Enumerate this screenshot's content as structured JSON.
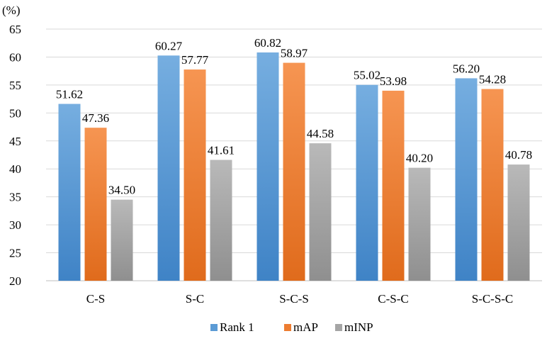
{
  "chart_data": {
    "type": "bar",
    "y_unit": "(%)",
    "categories": [
      "C-S",
      "S-C",
      "S-C-S",
      "C-S-C",
      "S-C-S-C"
    ],
    "series": [
      {
        "name": "Rank 1",
        "color": "#5b9bd5",
        "values": [
          51.62,
          60.27,
          60.82,
          55.02,
          56.2
        ],
        "labels": [
          "51.62",
          "60.27",
          "60.82",
          "55.02",
          "56.20"
        ]
      },
      {
        "name": "mAP",
        "color": "#ed7d31",
        "values": [
          47.36,
          57.77,
          58.97,
          53.98,
          54.28
        ],
        "labels": [
          "47.36",
          "57.77",
          "58.97",
          "53.98",
          "54.28"
        ]
      },
      {
        "name": "mINP",
        "color": "#a5a5a5",
        "values": [
          34.5,
          41.61,
          44.58,
          40.2,
          40.78
        ],
        "labels": [
          "34.50",
          "41.61",
          "44.58",
          "40.20",
          "40.78"
        ]
      }
    ],
    "ylim": [
      20,
      65
    ],
    "yticks": [
      20,
      25,
      30,
      35,
      40,
      45,
      50,
      55,
      60,
      65
    ],
    "grid": true,
    "legend_position": "bottom-center"
  }
}
